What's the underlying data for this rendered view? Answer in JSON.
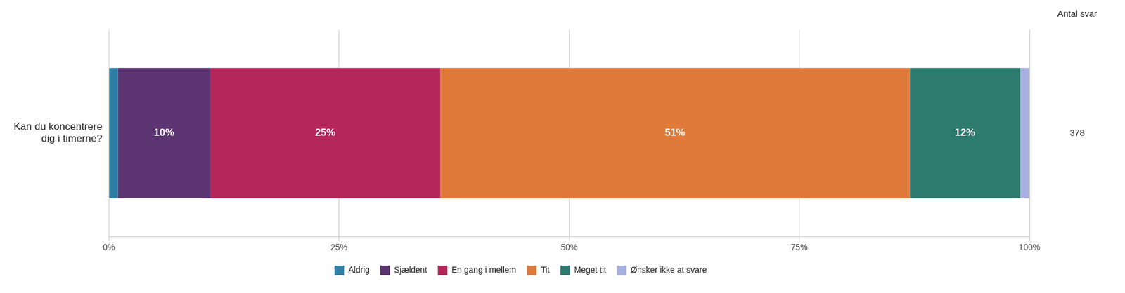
{
  "chart_data": {
    "type": "bar",
    "orientation": "horizontal",
    "stacked": true,
    "categories": [
      "Kan du koncentrere\ndig i timerne?"
    ],
    "series": [
      {
        "name": "Aldrig",
        "color": "#2e7fa3",
        "values": [
          1
        ],
        "value_labels": [
          null
        ]
      },
      {
        "name": "Sjældent",
        "color": "#5c3472",
        "values": [
          10
        ],
        "value_labels": [
          "10%"
        ]
      },
      {
        "name": "En gang i mellem",
        "color": "#b5265a",
        "values": [
          25
        ],
        "value_labels": [
          "25%"
        ]
      },
      {
        "name": "Tit",
        "color": "#e07a3a",
        "values": [
          51
        ],
        "value_labels": [
          "51%"
        ]
      },
      {
        "name": "Meget tit",
        "color": "#2d7a6e",
        "values": [
          12
        ],
        "value_labels": [
          "12%"
        ]
      },
      {
        "name": "Ønsker ikke at svare",
        "color": "#a8b0df",
        "values": [
          1
        ],
        "value_labels": [
          null
        ]
      }
    ],
    "data_labels": true,
    "xlim": [
      0,
      100
    ],
    "xticks": [
      {
        "value": 0,
        "label": "0%"
      },
      {
        "value": 25,
        "label": "25%"
      },
      {
        "value": 50,
        "label": "50%"
      },
      {
        "value": 75,
        "label": "75%"
      },
      {
        "value": 100,
        "label": "100%"
      }
    ],
    "grid": true,
    "legend": "bottom",
    "annotations": [
      "Antal svar",
      "378"
    ]
  }
}
